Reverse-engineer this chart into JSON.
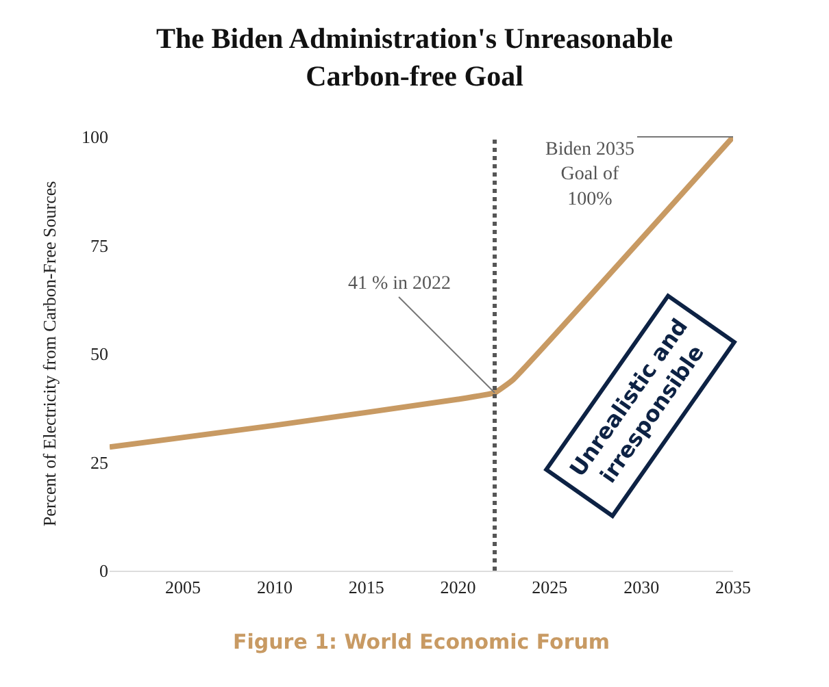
{
  "chart_data": {
    "type": "line",
    "title": "The Biden Administration's Unreasonable\nCarbon-free Goal",
    "ylabel": "Percent of Electricity from Carbon-Free Sources",
    "x": [
      2001,
      2010,
      2020,
      2022,
      2023,
      2035
    ],
    "series": [
      {
        "color": "#c89a63",
        "values": [
          28.5,
          33.5,
          39.5,
          41,
          44,
          100
        ]
      }
    ],
    "xlim": [
      2001,
      2035
    ],
    "xticks": [
      2005,
      2010,
      2015,
      2020,
      2025,
      2030,
      2035
    ],
    "ylim": [
      0,
      100
    ],
    "yticks": [
      0,
      25,
      50,
      75,
      100
    ],
    "marker": "none",
    "line_style": "solid",
    "ref_lines": [
      {
        "axis": "x",
        "value": 2022,
        "color": "#555555",
        "line_style": "dotted"
      }
    ],
    "annotations": [
      {
        "text": "41 % in 2022",
        "x": 2022,
        "y": 41
      },
      {
        "text": "Biden 2035\nGoal of\n100%",
        "x": 2035,
        "y": 100
      },
      "Unrealistic and\nirresponsible",
      "Figure 1: World Economic Forum"
    ]
  }
}
